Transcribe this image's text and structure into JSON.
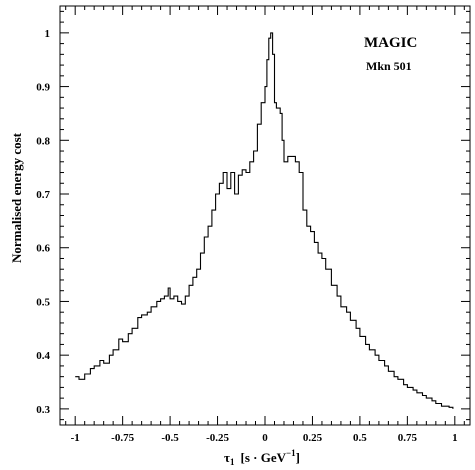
{
  "chart_data": {
    "type": "line",
    "xlabel_symbol": "τ",
    "xlabel_subscript": "1",
    "xlabel_unit_prefix": "[s · GeV",
    "xlabel_unit_exp": "−1",
    "xlabel_unit_suffix": "]",
    "ylabel": "Normalised energy cost",
    "annotations": [
      "MAGIC",
      "Mkn 501"
    ],
    "xlim": [
      -1.08,
      1.08
    ],
    "ylim": [
      0.27,
      1.05
    ],
    "x_ticks": [
      -1,
      -0.75,
      -0.5,
      -0.25,
      0,
      0.25,
      0.5,
      0.75,
      1
    ],
    "x_tick_labels": [
      "-1",
      "-0.75",
      "-0.5",
      "-0.25",
      "0",
      "0.25",
      "0.5",
      "0.75",
      "1"
    ],
    "y_ticks": [
      0.3,
      0.4,
      0.5,
      0.6,
      0.7,
      0.8,
      0.9,
      1.0
    ],
    "y_tick_labels": [
      "0.3",
      "0.4",
      "0.5",
      "0.6",
      "0.7",
      "0.8",
      "0.9",
      "1"
    ],
    "grid": false,
    "legend": "none",
    "line_color": "#000000",
    "series": [
      {
        "x": [
          -1.0,
          -0.98,
          -0.95,
          -0.92,
          -0.9,
          -0.87,
          -0.85,
          -0.82,
          -0.8,
          -0.77,
          -0.75,
          -0.72,
          -0.7,
          -0.67,
          -0.65,
          -0.62,
          -0.6,
          -0.57,
          -0.55,
          -0.53,
          -0.51,
          -0.5,
          -0.48,
          -0.46,
          -0.44,
          -0.42,
          -0.4,
          -0.38,
          -0.36,
          -0.34,
          -0.32,
          -0.3,
          -0.28,
          -0.26,
          -0.24,
          -0.22,
          -0.2,
          -0.18,
          -0.16,
          -0.14,
          -0.12,
          -0.1,
          -0.08,
          -0.06,
          -0.04,
          -0.02,
          0.0,
          0.01,
          0.02,
          0.03,
          0.04,
          0.05,
          0.06,
          0.08,
          0.09,
          0.1,
          0.12,
          0.14,
          0.16,
          0.18,
          0.2,
          0.22,
          0.24,
          0.26,
          0.28,
          0.3,
          0.32,
          0.35,
          0.38,
          0.4,
          0.43,
          0.45,
          0.48,
          0.5,
          0.53,
          0.55,
          0.58,
          0.6,
          0.63,
          0.65,
          0.68,
          0.7,
          0.73,
          0.75,
          0.78,
          0.8,
          0.83,
          0.85,
          0.88,
          0.9,
          0.93,
          0.95,
          0.97,
          0.99
        ],
        "y": [
          0.36,
          0.355,
          0.365,
          0.375,
          0.38,
          0.39,
          0.385,
          0.4,
          0.41,
          0.43,
          0.425,
          0.44,
          0.45,
          0.47,
          0.475,
          0.48,
          0.49,
          0.5,
          0.505,
          0.51,
          0.525,
          0.505,
          0.51,
          0.5,
          0.495,
          0.51,
          0.53,
          0.545,
          0.56,
          0.59,
          0.62,
          0.64,
          0.67,
          0.7,
          0.72,
          0.74,
          0.71,
          0.74,
          0.7,
          0.735,
          0.745,
          0.74,
          0.76,
          0.78,
          0.83,
          0.87,
          0.9,
          0.95,
          0.99,
          1.0,
          0.96,
          0.87,
          0.86,
          0.85,
          0.8,
          0.76,
          0.77,
          0.77,
          0.76,
          0.74,
          0.67,
          0.64,
          0.63,
          0.61,
          0.59,
          0.58,
          0.56,
          0.53,
          0.51,
          0.49,
          0.48,
          0.465,
          0.45,
          0.435,
          0.42,
          0.41,
          0.4,
          0.39,
          0.38,
          0.37,
          0.36,
          0.355,
          0.345,
          0.34,
          0.335,
          0.33,
          0.325,
          0.32,
          0.315,
          0.31,
          0.305,
          0.305,
          0.303,
          0.3
        ]
      }
    ]
  }
}
